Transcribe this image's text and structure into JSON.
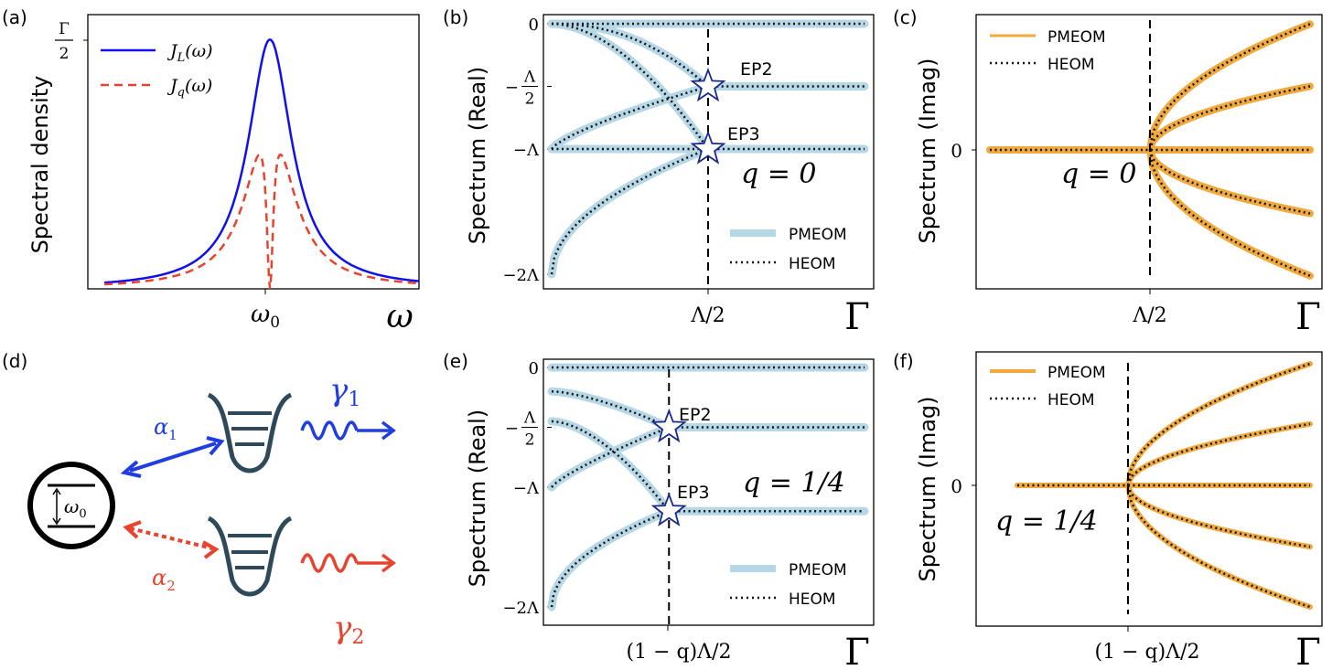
{
  "colors": {
    "blue_line": "#1010ee",
    "red_dashed": "#e8432e",
    "pmeom_real": "#b6d7e6",
    "pmeom_imag": "#f0a93c",
    "heom": "#111111",
    "diagram_wells": "#2e4a5a",
    "diagram_blue": "#1f3de0",
    "diagram_red": "#e8432e",
    "star_edge": "#1a2a8a"
  },
  "chart_data": [
    {
      "id": "a",
      "panel_label": "(a)",
      "type": "line",
      "ylabel": "Spectral density",
      "xlabel": "ω",
      "x_tick_labels": [
        "ω0"
      ],
      "y_tick_labels": [
        "Γ/2"
      ],
      "x": [
        -1.0,
        -0.9,
        -0.8,
        -0.7,
        -0.6,
        -0.5,
        -0.4,
        -0.3,
        -0.2,
        -0.15,
        -0.1,
        -0.06,
        -0.03,
        -0.01,
        0.0,
        0.01,
        0.03,
        0.06,
        0.1,
        0.15,
        0.2,
        0.3,
        0.4,
        0.5,
        0.6,
        0.7,
        0.8,
        0.9,
        1.0
      ],
      "xlim": [
        -1.1,
        0.9
      ],
      "ylim": [
        0,
        1.1
      ],
      "series": [
        {
          "name": "J_L(ω)",
          "style": "solid",
          "values": [
            0.02,
            0.04,
            0.06,
            0.1,
            0.15,
            0.22,
            0.33,
            0.5,
            0.72,
            0.83,
            0.93,
            0.98,
            0.995,
            1.0,
            1.0,
            1.0,
            0.995,
            0.98,
            0.93,
            0.83,
            0.72,
            0.5,
            0.33,
            0.22,
            0.15,
            0.1,
            0.06,
            0.04,
            0.02
          ]
        },
        {
          "name": "J_q(ω)",
          "style": "dashed",
          "values": [
            0.02,
            0.038,
            0.055,
            0.09,
            0.14,
            0.2,
            0.3,
            0.43,
            0.58,
            0.6,
            0.52,
            0.38,
            0.2,
            0.05,
            0.0,
            0.05,
            0.2,
            0.38,
            0.52,
            0.6,
            0.58,
            0.43,
            0.3,
            0.2,
            0.14,
            0.09,
            0.055,
            0.038,
            0.02
          ]
        }
      ],
      "legend": "top-left"
    },
    {
      "id": "b",
      "panel_label": "(b)",
      "type": "line",
      "ylabel": "Spectrum (Real)",
      "xlabel": "Γ",
      "x_tick_labels": [
        "Λ/2"
      ],
      "y_tick_labels": [
        "0",
        "-Λ/2",
        "-Λ",
        "-2Λ"
      ],
      "annotation": "q = 0",
      "ep_labels": [
        "EP2",
        "EP3"
      ],
      "ep_points": [
        [
          0.5,
          -0.5
        ],
        [
          0.5,
          -1.0
        ]
      ],
      "vline": 0.5,
      "xlim": [
        0,
        1.0
      ],
      "ylim": [
        -2.1,
        0.1
      ],
      "series": [
        {
          "name": "PMEOM",
          "style": "thick"
        },
        {
          "name": "HEOM",
          "style": "dotted"
        }
      ],
      "branches": {
        "before": [
          {
            "x": [
              0,
              0.1,
              0.2,
              0.3,
              0.4,
              0.5
            ],
            "y": [
              0,
              0,
              0,
              0,
              0,
              0
            ]
          },
          {
            "x": [
              0,
              0.1,
              0.2,
              0.3,
              0.4,
              0.5
            ],
            "y": [
              0,
              -0.03,
              -0.09,
              -0.18,
              -0.32,
              -0.5
            ]
          },
          {
            "x": [
              0,
              0.1,
              0.2,
              0.3,
              0.4,
              0.5
            ],
            "y": [
              -1,
              -0.87,
              -0.76,
              -0.66,
              -0.58,
              -0.5
            ]
          },
          {
            "x": [
              0,
              0.1,
              0.2,
              0.3,
              0.4,
              0.5
            ],
            "y": [
              0,
              -0.1,
              -0.24,
              -0.42,
              -0.66,
              -1.0
            ]
          },
          {
            "x": [
              0,
              0.1,
              0.2,
              0.3,
              0.4,
              0.5
            ],
            "y": [
              -1,
              -1,
              -1,
              -1,
              -1,
              -1
            ]
          },
          {
            "x": [
              0,
              0.1,
              0.2,
              0.3,
              0.4,
              0.5
            ],
            "y": [
              -2,
              -1.86,
              -1.7,
              -1.52,
              -1.3,
              -1.0
            ]
          }
        ],
        "after": [
          {
            "x": [
              0.5,
              1.0
            ],
            "y": [
              0,
              0
            ]
          },
          {
            "x": [
              0.5,
              1.0
            ],
            "y": [
              -0.5,
              -0.5
            ]
          },
          {
            "x": [
              0.5,
              1.0
            ],
            "y": [
              -1,
              -1
            ]
          }
        ]
      },
      "legend": "bottom-right"
    },
    {
      "id": "c",
      "panel_label": "(c)",
      "type": "line",
      "ylabel": "Spectrum (Imag)",
      "xlabel": "Γ",
      "x_tick_labels": [
        "Λ/2"
      ],
      "y_tick_labels": [
        "0"
      ],
      "annotation": "q = 0",
      "vline": 0.5,
      "xlim": [
        0,
        1.0
      ],
      "ylim": [
        -1.0,
        1.0
      ],
      "series": [
        {
          "name": "PMEOM",
          "style": "thick"
        },
        {
          "name": "HEOM",
          "style": "dotted"
        }
      ],
      "branches_after_scale": [
        0.95,
        0.48,
        0,
        -0.48,
        -0.95
      ],
      "legend": "top-left"
    },
    {
      "id": "e",
      "panel_label": "(e)",
      "type": "line",
      "ylabel": "Spectrum (Real)",
      "xlabel": "Γ",
      "x_tick_labels": [
        "(1 − q)Λ/2"
      ],
      "y_tick_labels": [
        "0",
        "-Λ/2",
        "-Λ",
        "-2Λ"
      ],
      "annotation": "q = 1/4",
      "ep_labels": [
        "EP2",
        "EP3"
      ],
      "ep_points": [
        [
          0.375,
          -0.5
        ],
        [
          0.375,
          -1.2
        ]
      ],
      "vline": 0.375,
      "xlim": [
        0,
        1.0
      ],
      "ylim": [
        -2.1,
        0.1
      ],
      "series": [
        {
          "name": "PMEOM",
          "style": "thick"
        },
        {
          "name": "HEOM",
          "style": "dotted"
        }
      ],
      "legend": "bottom-right"
    },
    {
      "id": "f",
      "panel_label": "(f)",
      "type": "line",
      "ylabel": "Spectrum (Imag)",
      "xlabel": "Γ",
      "x_tick_labels": [
        "(1 − q)Λ/2"
      ],
      "y_tick_labels": [
        "0"
      ],
      "annotation": "q = 1/4",
      "vline": 0.375,
      "xlim": [
        0,
        1.0
      ],
      "ylim": [
        -1.0,
        1.0
      ],
      "series": [
        {
          "name": "PMEOM",
          "style": "thick"
        },
        {
          "name": "HEOM",
          "style": "dotted"
        }
      ],
      "branches_after_scale": [
        0.95,
        0.48,
        0,
        -0.48,
        -0.95
      ],
      "legend": "top-left"
    }
  ],
  "diagram_d": {
    "panel_label": "(d)",
    "labels": [
      "α1",
      "α2",
      "γ1",
      "γ2",
      "ω0"
    ]
  }
}
